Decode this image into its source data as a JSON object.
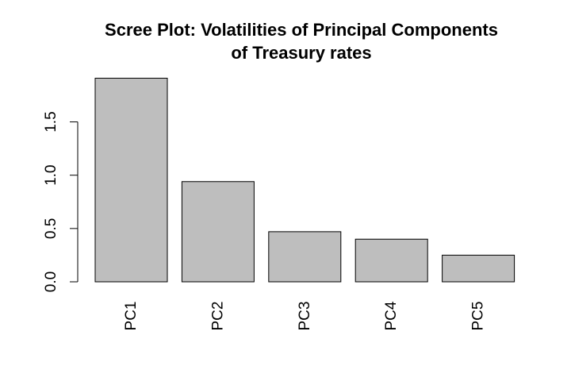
{
  "chart_data": {
    "type": "bar",
    "title_lines": [
      "Scree Plot: Volatilities of Principal Components",
      "of Treasury rates"
    ],
    "categories": [
      "PC1",
      "PC2",
      "PC3",
      "PC4",
      "PC5"
    ],
    "values": [
      1.91,
      0.94,
      0.47,
      0.4,
      0.25
    ],
    "xlabel": "",
    "ylabel": "",
    "ylim": [
      0,
      1.91
    ],
    "yticks": [
      "0.0",
      "0.5",
      "1.0",
      "1.5"
    ],
    "grid": false,
    "colors": {
      "bar_fill": "#bebebe",
      "bar_stroke": "#000000",
      "axis": "#000000",
      "background": "#ffffff"
    }
  }
}
